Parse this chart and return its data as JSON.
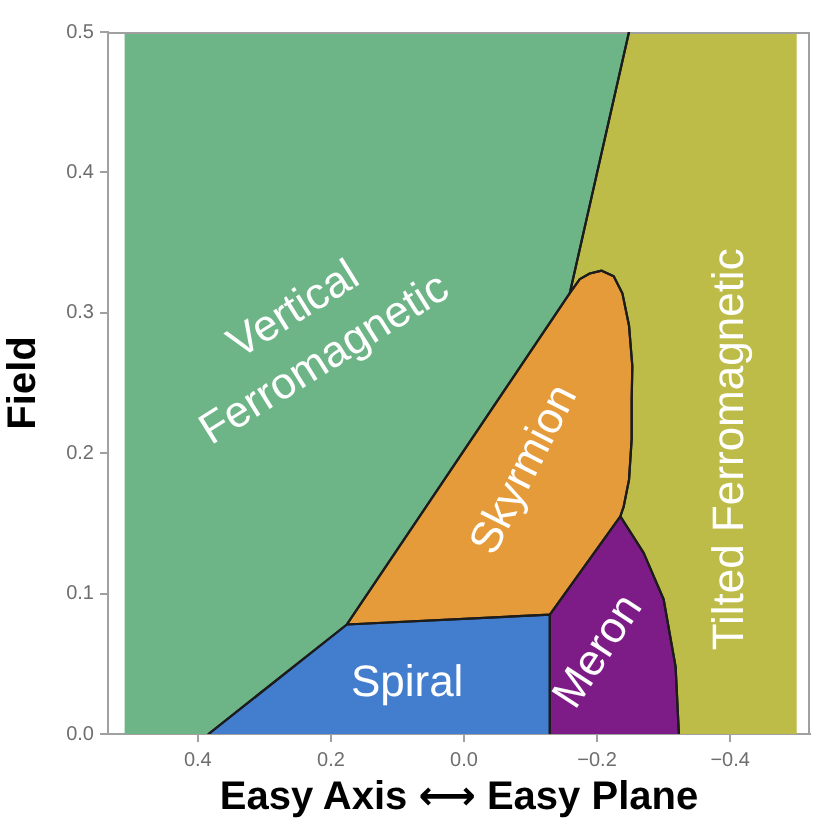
{
  "chart_data": {
    "type": "area",
    "xlabel": "Easy Axis ⟷ Easy Plane",
    "ylabel": "Field",
    "xlim": [
      0.535,
      -0.52
    ],
    "ylim": [
      0,
      0.5
    ],
    "xticks": [
      0.4,
      0.2,
      {
        "value": 0,
        "label": "0.0"
      },
      {
        "value": -0.2,
        "label": "−0.2"
      },
      {
        "value": -0.4,
        "label": "−0.4"
      }
    ],
    "yticks": [
      {
        "value": 0,
        "label": "0.0"
      },
      0.1,
      0.2,
      0.3,
      0.4,
      0.5
    ],
    "series": [
      {
        "name": "Vertical Ferromagnetic",
        "color": "#6db487",
        "x": [
          0.51,
          0.384,
          0.176,
          -0.159,
          -0.248,
          0.51
        ],
        "values": [
          0,
          0,
          0.078,
          0.314,
          0.5,
          0.5
        ]
      },
      {
        "name": "Tilted Ferromagnetic",
        "color": "#bebc48",
        "x": [
          -0.5,
          -0.323,
          -0.318,
          -0.3,
          -0.27,
          -0.235,
          -0.24,
          -0.248,
          -0.252,
          -0.252,
          -0.253,
          -0.248,
          -0.238,
          -0.225,
          -0.207,
          -0.189,
          -0.174,
          -0.159,
          -0.248,
          -0.5
        ],
        "values": [
          0,
          0,
          0.048,
          0.096,
          0.129,
          0.155,
          0.162,
          0.181,
          0.21,
          0.238,
          0.262,
          0.291,
          0.314,
          0.326,
          0.33,
          0.328,
          0.324,
          0.314,
          0.5,
          0.5
        ]
      },
      {
        "name": "Skyrmion",
        "color": "#e59b39",
        "x": [
          -0.159,
          -0.174,
          -0.189,
          -0.207,
          -0.225,
          -0.238,
          -0.248,
          -0.253,
          -0.252,
          -0.252,
          -0.248,
          -0.24,
          -0.235,
          -0.129,
          0.176
        ],
        "values": [
          0.314,
          0.324,
          0.328,
          0.33,
          0.326,
          0.314,
          0.291,
          0.262,
          0.238,
          0.21,
          0.181,
          0.162,
          0.155,
          0.085,
          0.078
        ]
      },
      {
        "name": "Spiral",
        "color": "#437dce",
        "x": [
          0.384,
          0.176,
          -0.129,
          -0.129
        ],
        "values": [
          0,
          0.078,
          0.085,
          0
        ]
      },
      {
        "name": "Meron",
        "color": "#7d1c87",
        "x": [
          -0.129,
          -0.129,
          -0.235,
          -0.27,
          -0.3,
          -0.318,
          -0.323
        ],
        "values": [
          0,
          0.085,
          0.155,
          0.129,
          0.096,
          0.048,
          0
        ]
      }
    ]
  }
}
